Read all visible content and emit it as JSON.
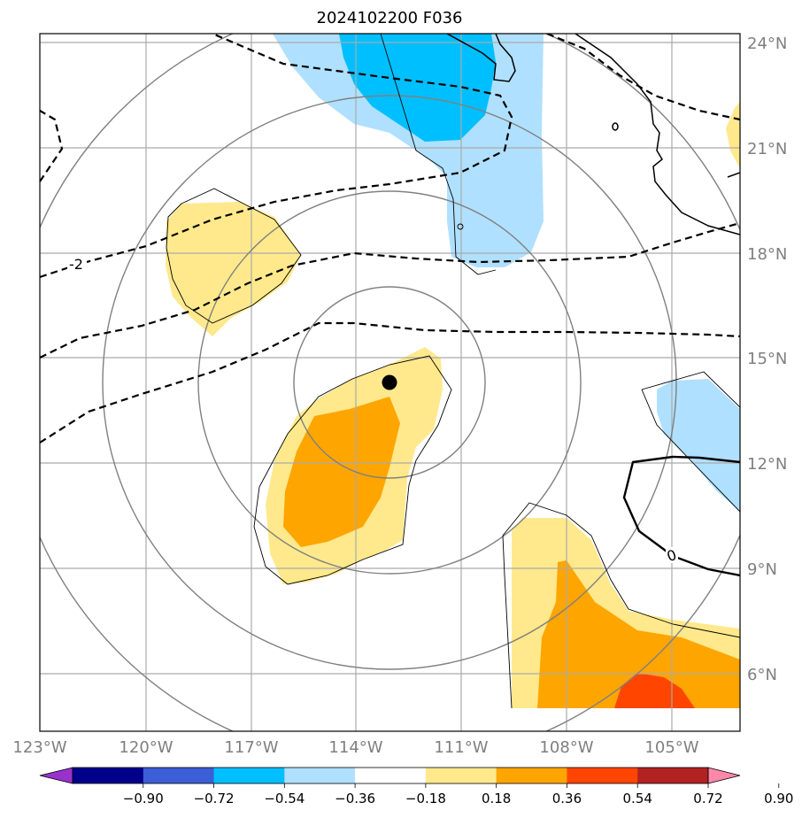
{
  "title": "2024102200 F036",
  "lat_labels": [
    "24°N",
    "21°N",
    "18°N",
    "15°N",
    "12°N",
    "9°N",
    "6°N"
  ],
  "lon_labels": [
    "123°W",
    "120°W",
    "117°W",
    "114°W",
    "111°W",
    "108°W",
    "105°W"
  ],
  "contour_labels": [
    "-2",
    "0"
  ],
  "colorbar": {
    "colors": [
      "#9932cc",
      "#00008b",
      "#3c5ed6",
      "#00bfff",
      "#b0e0ff",
      "#ffffff",
      "#ffe98c",
      "#ffa500",
      "#ff4500",
      "#b22222",
      "#ff88aa"
    ],
    "tick_labels": [
      "−0.90",
      "−0.72",
      "−0.54",
      "−0.36",
      "−0.18",
      "0.18",
      "0.36",
      "0.54",
      "0.72",
      "0.90"
    ]
  },
  "fill_colors": {
    "light_blue": "#b0e0ff",
    "blue": "#00bfff",
    "yellow": "#ffe98c",
    "orange": "#ffa500",
    "red_orange": "#ff4500"
  },
  "center_marker": {
    "lat": 14.3,
    "lon": -112.2
  }
}
